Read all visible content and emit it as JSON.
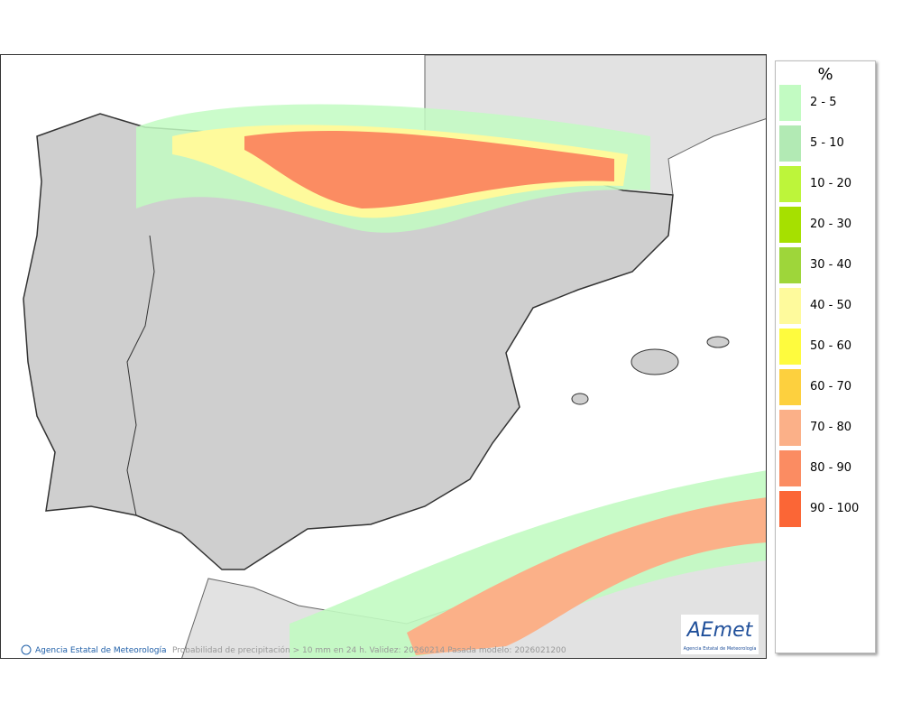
{
  "legend": {
    "title": "%",
    "items": [
      {
        "label": "2 - 5",
        "color": "#c2fbc2"
      },
      {
        "label": "5 - 10",
        "color": "#b2eab4"
      },
      {
        "label": "10 - 20",
        "color": "#bdf53a"
      },
      {
        "label": "20 - 30",
        "color": "#a6e000"
      },
      {
        "label": "30 - 40",
        "color": "#9ed63a"
      },
      {
        "label": "40 - 50",
        "color": "#fefa9c"
      },
      {
        "label": "50 - 60",
        "color": "#fefb3e"
      },
      {
        "label": "60 - 70",
        "color": "#fdd03e"
      },
      {
        "label": "70 - 80",
        "color": "#fbb088"
      },
      {
        "label": "80 - 90",
        "color": "#fb8c62"
      },
      {
        "label": "90 - 100",
        "color": "#fb6636"
      }
    ]
  },
  "footer": {
    "credit": "Agencia Estatal de Meteorología",
    "caption": "Probabilidad de precipitación > 10 mm en 24 h. Validez: 20260214 Pasada modelo: 2026021200"
  },
  "logo": {
    "name": "AEmet",
    "subtitle": "Agencia Estatal de Meteorología"
  }
}
